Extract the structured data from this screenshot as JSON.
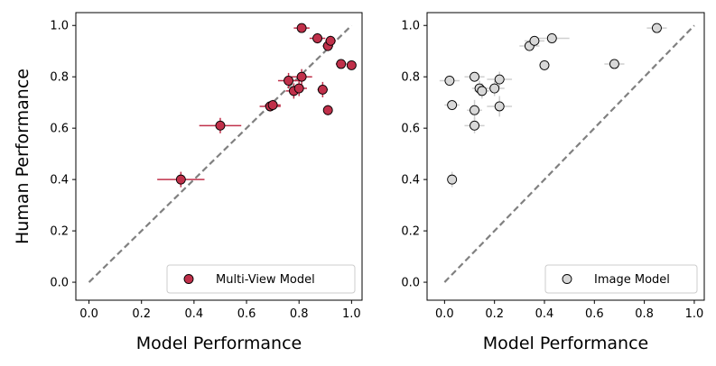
{
  "chart_data": [
    {
      "type": "scatter",
      "xlabel": "Model Performance",
      "ylabel": "Human Performance",
      "xlim": [
        -0.05,
        1.04
      ],
      "ylim": [
        -0.07,
        1.05
      ],
      "xticks": [
        "0.0",
        "0.2",
        "0.4",
        "0.6",
        "0.8",
        "1.0"
      ],
      "yticks": [
        "0.0",
        "0.2",
        "0.4",
        "0.6",
        "0.8",
        "1.0"
      ],
      "diagonal": true,
      "legend": {
        "label": "Multi-View Model",
        "position": "lower-right"
      },
      "marker_color": "#c0304a",
      "errorbar_color": "#c0304a",
      "points": [
        {
          "x": 0.35,
          "y": 0.4,
          "xerr": 0.09,
          "yerr": 0.03
        },
        {
          "x": 0.5,
          "y": 0.61,
          "xerr": 0.08,
          "yerr": 0.03
        },
        {
          "x": 0.69,
          "y": 0.685,
          "xerr": 0.04,
          "yerr": 0.02
        },
        {
          "x": 0.7,
          "y": 0.69,
          "xerr": 0.03,
          "yerr": 0.02
        },
        {
          "x": 0.76,
          "y": 0.785,
          "xerr": 0.04,
          "yerr": 0.03
        },
        {
          "x": 0.78,
          "y": 0.745,
          "xerr": 0.03,
          "yerr": 0.03
        },
        {
          "x": 0.8,
          "y": 0.755,
          "xerr": 0.03,
          "yerr": 0.03
        },
        {
          "x": 0.81,
          "y": 0.8,
          "xerr": 0.04,
          "yerr": 0.03
        },
        {
          "x": 0.81,
          "y": 0.99,
          "xerr": 0.03,
          "yerr": 0.01
        },
        {
          "x": 0.87,
          "y": 0.95,
          "xerr": 0.03,
          "yerr": 0.02
        },
        {
          "x": 0.89,
          "y": 0.75,
          "xerr": 0.02,
          "yerr": 0.03
        },
        {
          "x": 0.91,
          "y": 0.67,
          "xerr": 0.01,
          "yerr": 0.02
        },
        {
          "x": 0.91,
          "y": 0.92,
          "xerr": 0.02,
          "yerr": 0.02
        },
        {
          "x": 0.92,
          "y": 0.94,
          "xerr": 0.02,
          "yerr": 0.02
        },
        {
          "x": 0.96,
          "y": 0.85,
          "xerr": 0.02,
          "yerr": 0.01
        },
        {
          "x": 1.0,
          "y": 0.845,
          "xerr": 0.01,
          "yerr": 0.01
        }
      ]
    },
    {
      "type": "scatter",
      "xlabel": "Model Performance",
      "ylabel": "",
      "xlim": [
        -0.07,
        1.04
      ],
      "ylim": [
        -0.07,
        1.05
      ],
      "xticks": [
        "0.0",
        "0.2",
        "0.4",
        "0.6",
        "0.8",
        "1.0"
      ],
      "yticks": [
        "0.0",
        "0.2",
        "0.4",
        "0.6",
        "0.8",
        "1.0"
      ],
      "diagonal": true,
      "legend": {
        "label": "Image Model",
        "position": "lower-right"
      },
      "marker_color": "#d8d8d8",
      "errorbar_color": "#cfcfcf",
      "points": [
        {
          "x": 0.03,
          "y": 0.4,
          "xerr": 0.01,
          "yerr": 0.03
        },
        {
          "x": 0.03,
          "y": 0.69,
          "xerr": 0.03,
          "yerr": 0.02
        },
        {
          "x": 0.02,
          "y": 0.785,
          "xerr": 0.04,
          "yerr": 0.02
        },
        {
          "x": 0.12,
          "y": 0.61,
          "xerr": 0.04,
          "yerr": 0.03
        },
        {
          "x": 0.12,
          "y": 0.67,
          "xerr": 0.03,
          "yerr": 0.04
        },
        {
          "x": 0.12,
          "y": 0.8,
          "xerr": 0.04,
          "yerr": 0.02
        },
        {
          "x": 0.14,
          "y": 0.755,
          "xerr": 0.03,
          "yerr": 0.03
        },
        {
          "x": 0.15,
          "y": 0.745,
          "xerr": 0.03,
          "yerr": 0.03
        },
        {
          "x": 0.2,
          "y": 0.755,
          "xerr": 0.04,
          "yerr": 0.03
        },
        {
          "x": 0.22,
          "y": 0.79,
          "xerr": 0.05,
          "yerr": 0.03
        },
        {
          "x": 0.22,
          "y": 0.685,
          "xerr": 0.05,
          "yerr": 0.04
        },
        {
          "x": 0.34,
          "y": 0.92,
          "xerr": 0.04,
          "yerr": 0.02
        },
        {
          "x": 0.36,
          "y": 0.94,
          "xerr": 0.04,
          "yerr": 0.02
        },
        {
          "x": 0.4,
          "y": 0.845,
          "xerr": 0.02,
          "yerr": 0.02
        },
        {
          "x": 0.43,
          "y": 0.95,
          "xerr": 0.07,
          "yerr": 0.02
        },
        {
          "x": 0.68,
          "y": 0.85,
          "xerr": 0.04,
          "yerr": 0.01
        },
        {
          "x": 0.85,
          "y": 0.99,
          "xerr": 0.04,
          "yerr": 0.01
        }
      ]
    }
  ]
}
